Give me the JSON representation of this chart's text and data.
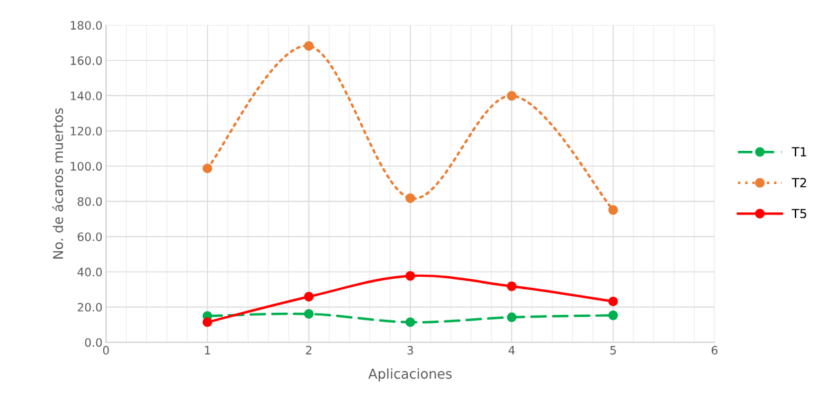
{
  "chart_data": {
    "type": "line",
    "xlabel": "Aplicaciones",
    "ylabel": "No. de ácaros muertos",
    "x": [
      1,
      2,
      3,
      4,
      5
    ],
    "series": [
      {
        "name": "T1",
        "color": "#00b050",
        "values": [
          14.9,
          16.1,
          11.4,
          14.2,
          15.3
        ],
        "line_style": "dashed"
      },
      {
        "name": "T2",
        "color": "#ed7d31",
        "values": [
          98.7,
          168.2,
          81.8,
          139.9,
          75.1
        ],
        "line_style": "dotted"
      },
      {
        "name": "T5",
        "color": "#ff0000",
        "values": [
          11.4,
          25.9,
          37.7,
          31.8,
          23.2
        ],
        "line_style": "solid"
      }
    ],
    "xlim": [
      0,
      6
    ],
    "xticks": [
      0,
      1,
      2,
      3,
      4,
      5,
      6
    ],
    "ylim": [
      0,
      180
    ],
    "yticks": [
      {
        "value": 0,
        "label": "0.0"
      },
      {
        "value": 20,
        "label": "20.0"
      },
      {
        "value": 40,
        "label": "40.0"
      },
      {
        "value": 60,
        "label": "60.0"
      },
      {
        "value": 80,
        "label": "80.0"
      },
      {
        "value": 100,
        "label": "100.0"
      },
      {
        "value": 120,
        "label": "120.0"
      },
      {
        "value": 140,
        "label": "140.0"
      },
      {
        "value": 160,
        "label": "160.0"
      },
      {
        "value": 180,
        "label": "180.0"
      }
    ],
    "grid": true,
    "legend": "right",
    "marker": "circle"
  }
}
